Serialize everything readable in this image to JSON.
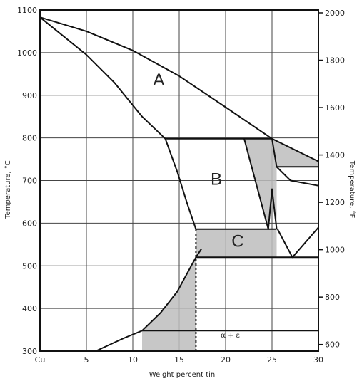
{
  "chart_data": {
    "type": "line",
    "title": "",
    "xlabel": "Weight percent tin",
    "ylabel_left": "Temperature, °C",
    "ylabel_right": "Temperature, °F",
    "xlim": [
      0,
      30
    ],
    "ylim_c": [
      300,
      1100
    ],
    "x_tick_labels": [
      "Cu",
      "5",
      "10",
      "15",
      "20",
      "25",
      "30"
    ],
    "x_tick_values": [
      0,
      5,
      10,
      15,
      20,
      25,
      30
    ],
    "y_ticks_c": [
      300,
      400,
      500,
      600,
      700,
      800,
      900,
      1000,
      1100
    ],
    "y_ticks_f": [
      600,
      800,
      1000,
      1200,
      1400,
      1600,
      1800,
      2000
    ],
    "grid": true,
    "regions": [
      {
        "label": "A",
        "x": 12.8,
        "y": 923
      },
      {
        "label": "B",
        "x": 19.0,
        "y": 690
      },
      {
        "label": "C",
        "x": 21.3,
        "y": 545
      },
      {
        "label": "α + ε",
        "x": 20.5,
        "y": 332
      }
    ],
    "series": [
      {
        "values": [
          [
            0,
            1083
          ],
          [
            5,
            1050
          ],
          [
            10,
            1005
          ],
          [
            15,
            945
          ],
          [
            20,
            872
          ],
          [
            25,
            798
          ],
          [
            30,
            745
          ]
        ]
      },
      {
        "values": [
          [
            0,
            1083
          ],
          [
            5,
            995
          ],
          [
            8,
            930
          ],
          [
            11,
            850
          ],
          [
            13.5,
            798
          ],
          [
            25,
            798
          ]
        ]
      },
      {
        "values": [
          [
            13.5,
            798
          ],
          [
            14.8,
            720
          ],
          [
            15.8,
            650
          ],
          [
            16.8,
            586
          ]
        ]
      },
      {
        "values": [
          [
            6,
            300
          ],
          [
            9,
            330
          ],
          [
            11,
            348
          ],
          [
            30,
            348
          ]
        ]
      },
      {
        "values": [
          [
            11,
            348
          ],
          [
            13,
            390
          ],
          [
            14.8,
            440
          ],
          [
            15.8,
            480
          ],
          [
            16.8,
            520
          ],
          [
            17.4,
            540
          ]
        ]
      },
      {
        "values": [
          [
            16.8,
            520
          ],
          [
            30,
            520
          ]
        ]
      },
      {
        "values": [
          [
            16.8,
            586
          ],
          [
            24.5,
            586
          ],
          [
            25.5,
            586
          ]
        ]
      },
      {
        "values": [
          [
            22,
            798
          ],
          [
            24.6,
            586
          ],
          [
            25.0,
            680
          ],
          [
            25.5,
            586
          ]
        ]
      },
      {
        "values": [
          [
            25.5,
            732
          ],
          [
            30,
            732
          ]
        ]
      },
      {
        "values": [
          [
            25,
            798
          ],
          [
            25.5,
            732
          ],
          [
            27,
            700
          ],
          [
            30,
            688
          ]
        ]
      },
      {
        "values": [
          [
            25.6,
            586
          ],
          [
            27.2,
            520
          ],
          [
            30,
            590
          ]
        ]
      },
      {
        "values": [
          [
            16.8,
            300
          ],
          [
            16.8,
            586
          ]
        ]
      }
    ],
    "shaded_regions": [
      {
        "values": [
          [
            13.5,
            798
          ],
          [
            25,
            798
          ],
          [
            30,
            745
          ],
          [
            30,
            732
          ],
          [
            25.5,
            732
          ],
          [
            25.5,
            586
          ],
          [
            25.0,
            680
          ],
          [
            24.6,
            586
          ],
          [
            22,
            798
          ],
          [
            14,
            798
          ]
        ]
      },
      {
        "values": [
          [
            16.8,
            586
          ],
          [
            25.5,
            586
          ],
          [
            25.5,
            520
          ],
          [
            16.8,
            520
          ]
        ]
      },
      {
        "values": [
          [
            11,
            348
          ],
          [
            13,
            390
          ],
          [
            14.8,
            440
          ],
          [
            15.8,
            480
          ],
          [
            16.8,
            520
          ],
          [
            16.8,
            300
          ],
          [
            11,
            300
          ]
        ]
      }
    ]
  }
}
